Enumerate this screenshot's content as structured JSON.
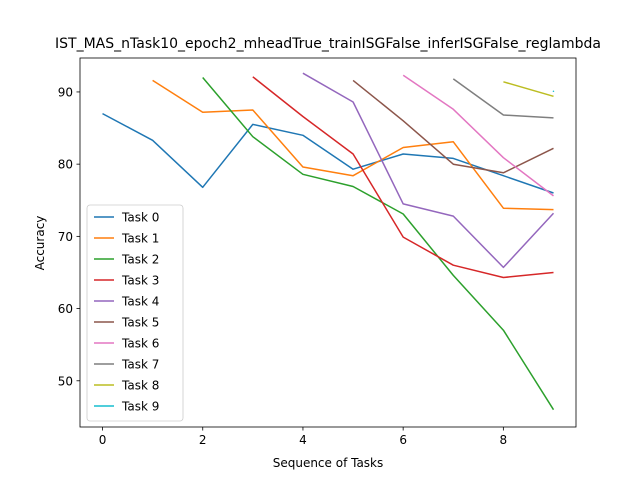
{
  "chart_data": {
    "type": "line",
    "title": "IST_MAS_nTask10_epoch2_mheadTrue_trainISGFalse_inferISGFalse_reglambda",
    "xlabel": "Sequence of Tasks",
    "ylabel": "Accuracy",
    "xlim": [
      -0.45,
      9.45
    ],
    "ylim": [
      43.6,
      94.7
    ],
    "xticks": [
      0,
      2,
      4,
      6,
      8
    ],
    "yticks": [
      50,
      60,
      70,
      80,
      90
    ],
    "grid": false,
    "legend_position": "lower-left",
    "series": [
      {
        "name": "Task 0",
        "color": "#1f77b4",
        "x": [
          0,
          1,
          2,
          3,
          4,
          5,
          6,
          7,
          8,
          9
        ],
        "values": [
          87.0,
          83.3,
          76.8,
          85.5,
          84.0,
          79.3,
          81.4,
          80.8,
          78.4,
          76.0
        ]
      },
      {
        "name": "Task 1",
        "color": "#ff7f0e",
        "x": [
          1,
          2,
          3,
          4,
          5,
          6,
          7,
          8,
          9
        ],
        "values": [
          91.6,
          87.2,
          87.5,
          79.6,
          78.4,
          82.3,
          83.1,
          73.9,
          73.7
        ]
      },
      {
        "name": "Task 2",
        "color": "#2ca02c",
        "x": [
          2,
          3,
          4,
          5,
          6,
          7,
          8,
          9
        ],
        "values": [
          92.0,
          83.8,
          78.6,
          76.9,
          73.1,
          64.6,
          57.0,
          46.0
        ]
      },
      {
        "name": "Task 3",
        "color": "#d62728",
        "x": [
          3,
          4,
          5,
          6,
          7,
          8,
          9
        ],
        "values": [
          92.1,
          86.6,
          81.4,
          69.9,
          66.0,
          64.3,
          65.0
        ]
      },
      {
        "name": "Task 4",
        "color": "#9467bd",
        "x": [
          4,
          5,
          6,
          7,
          8,
          9
        ],
        "values": [
          92.6,
          88.6,
          74.5,
          72.8,
          65.7,
          73.2
        ]
      },
      {
        "name": "Task 5",
        "color": "#8c564b",
        "x": [
          5,
          6,
          7,
          8,
          9
        ],
        "values": [
          91.6,
          86.0,
          80.0,
          78.8,
          82.2
        ]
      },
      {
        "name": "Task 6",
        "color": "#e377c2",
        "x": [
          6,
          7,
          8,
          9
        ],
        "values": [
          92.3,
          87.6,
          80.9,
          75.6
        ]
      },
      {
        "name": "Task 7",
        "color": "#7f7f7f",
        "x": [
          7,
          8,
          9
        ],
        "values": [
          91.8,
          86.8,
          86.4
        ]
      },
      {
        "name": "Task 8",
        "color": "#bcbd22",
        "x": [
          8,
          9
        ],
        "values": [
          91.4,
          89.4
        ]
      },
      {
        "name": "Task 9",
        "color": "#17becf",
        "x": [
          9
        ],
        "values": [
          90.1
        ]
      }
    ]
  }
}
